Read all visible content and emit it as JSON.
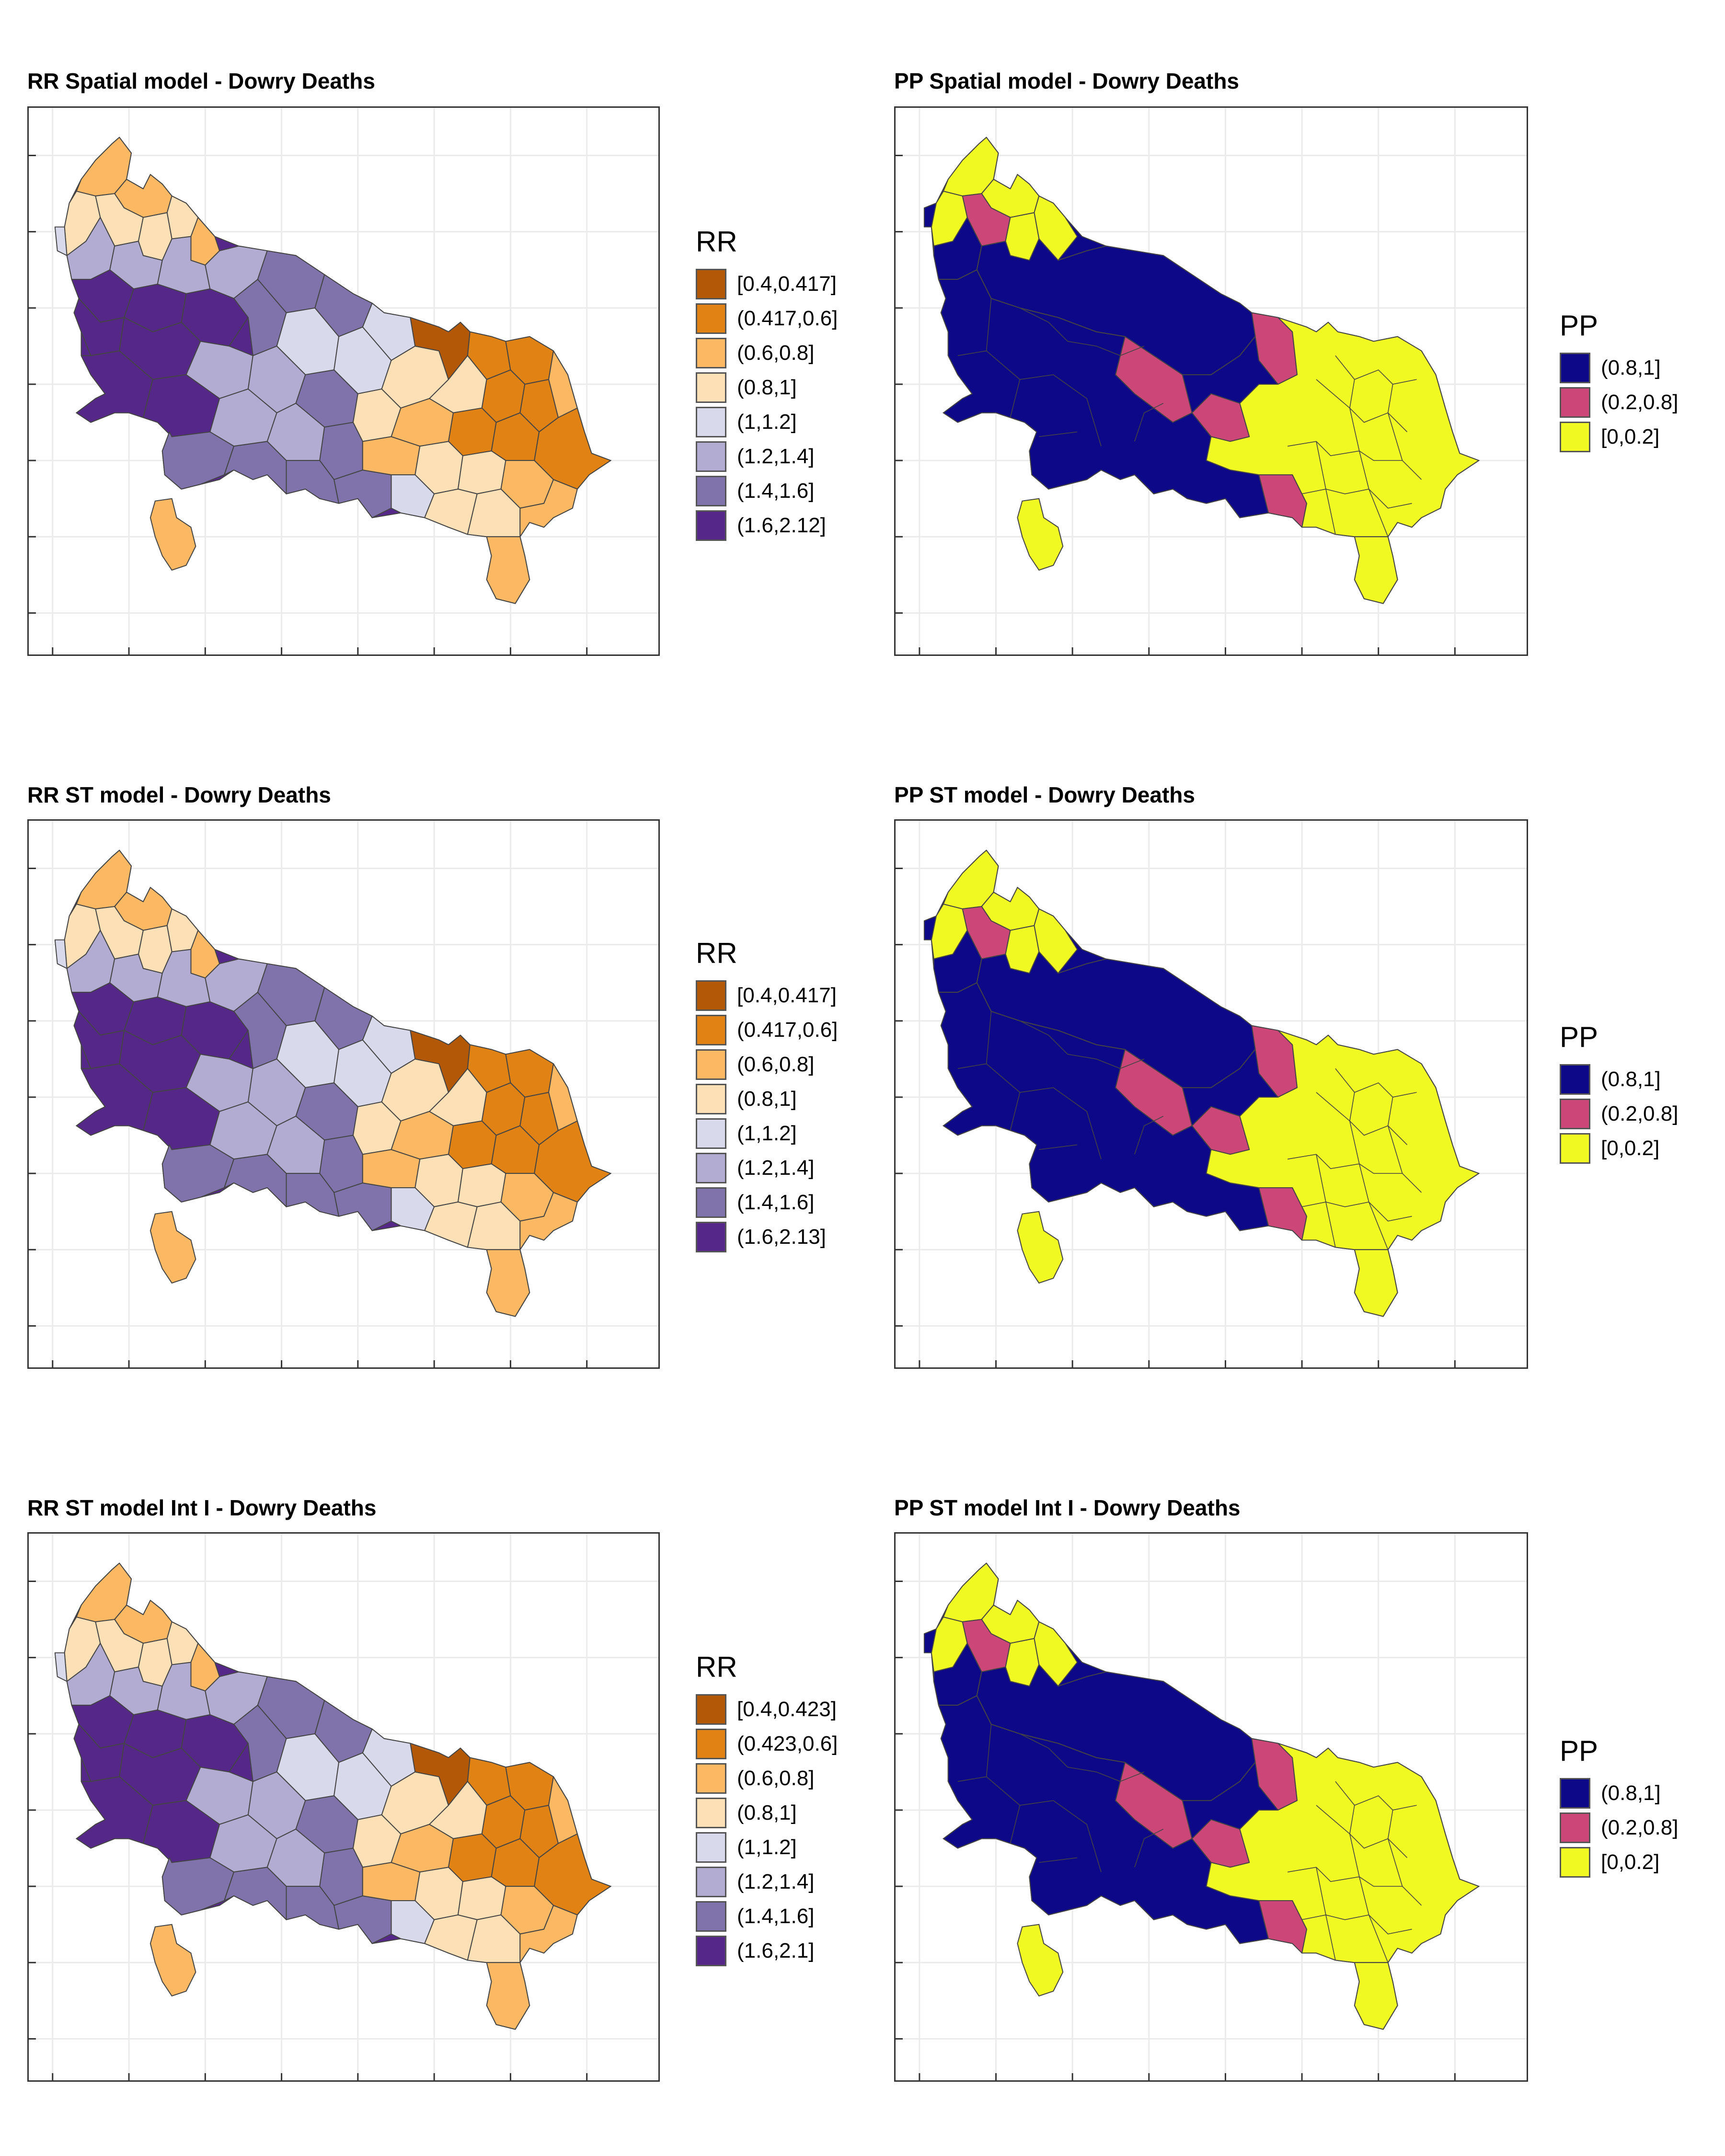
{
  "panels": [
    {
      "id": "p1",
      "title": "RR Spatial model - Dowry Deaths",
      "kind": "RR",
      "legend_title": "RR",
      "legend": [
        {
          "label": "[0.4,0.417]",
          "color": "#b35806"
        },
        {
          "label": "(0.417,0.6]",
          "color": "#e08214"
        },
        {
          "label": "(0.6,0.8]",
          "color": "#fdb863"
        },
        {
          "label": "(0.8,1]",
          "color": "#fee0b6"
        },
        {
          "label": "(1,1.2]",
          "color": "#d8daeb"
        },
        {
          "label": "(1.2,1.4]",
          "color": "#b2abd2"
        },
        {
          "label": "(1.4,1.6]",
          "color": "#8073ac"
        },
        {
          "label": "(1.6,2.12]",
          "color": "#542788"
        }
      ]
    },
    {
      "id": "p2",
      "title": "PP Spatial model - Dowry Deaths",
      "kind": "PP",
      "legend_title": "PP",
      "legend": [
        {
          "label": "(0.8,1]",
          "color": "#0d0887"
        },
        {
          "label": "(0.2,0.8]",
          "color": "#cc4778"
        },
        {
          "label": "[0,0.2]",
          "color": "#f0f921"
        }
      ]
    },
    {
      "id": "p3",
      "title": "RR ST model - Dowry Deaths",
      "kind": "RR",
      "legend_title": "RR",
      "legend": [
        {
          "label": "[0.4,0.417]",
          "color": "#b35806"
        },
        {
          "label": "(0.417,0.6]",
          "color": "#e08214"
        },
        {
          "label": "(0.6,0.8]",
          "color": "#fdb863"
        },
        {
          "label": "(0.8,1]",
          "color": "#fee0b6"
        },
        {
          "label": "(1,1.2]",
          "color": "#d8daeb"
        },
        {
          "label": "(1.2,1.4]",
          "color": "#b2abd2"
        },
        {
          "label": "(1.4,1.6]",
          "color": "#8073ac"
        },
        {
          "label": "(1.6,2.13]",
          "color": "#542788"
        }
      ]
    },
    {
      "id": "p4",
      "title": "PP ST model - Dowry Deaths",
      "kind": "PP",
      "legend_title": "PP",
      "legend": [
        {
          "label": "(0.8,1]",
          "color": "#0d0887"
        },
        {
          "label": "(0.2,0.8]",
          "color": "#cc4778"
        },
        {
          "label": "[0,0.2]",
          "color": "#f0f921"
        }
      ]
    },
    {
      "id": "p5",
      "title": "RR ST model Int I - Dowry Deaths",
      "kind": "RR",
      "legend_title": "RR",
      "legend": [
        {
          "label": "[0.4,0.423]",
          "color": "#b35806"
        },
        {
          "label": "(0.423,0.6]",
          "color": "#e08214"
        },
        {
          "label": "(0.6,0.8]",
          "color": "#fdb863"
        },
        {
          "label": "(0.8,1]",
          "color": "#fee0b6"
        },
        {
          "label": "(1,1.2]",
          "color": "#d8daeb"
        },
        {
          "label": "(1.2,1.4]",
          "color": "#b2abd2"
        },
        {
          "label": "(1.4,1.6]",
          "color": "#8073ac"
        },
        {
          "label": "(1.6,2.1]",
          "color": "#542788"
        }
      ]
    },
    {
      "id": "p6",
      "title": "PP ST model Int I - Dowry Deaths",
      "kind": "PP",
      "legend_title": "PP",
      "legend": [
        {
          "label": "(0.8,1]",
          "color": "#0d0887"
        },
        {
          "label": "(0.2,0.8]",
          "color": "#cc4778"
        },
        {
          "label": "[0,0.2]",
          "color": "#f0f921"
        }
      ]
    }
  ]
}
